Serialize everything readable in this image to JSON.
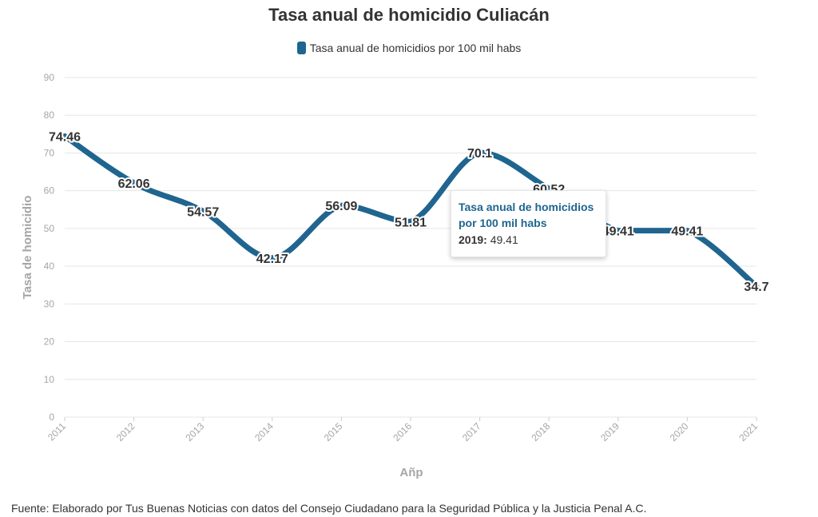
{
  "chart_data": {
    "type": "line",
    "title": "Tasa anual de homicidio Culiacán",
    "xlabel": "Añp",
    "ylabel": "Tasa de homicidio",
    "x": [
      "2011",
      "2012",
      "2013",
      "2014",
      "2015",
      "2016",
      "2017",
      "2018",
      "2019",
      "2020",
      "2021"
    ],
    "series": [
      {
        "name": "Tasa anual de homicidios por 100 mil habs",
        "values": [
          74.46,
          62.06,
          54.57,
          42.17,
          56.09,
          51.81,
          70.1,
          60.52,
          49.41,
          49.41,
          34.7
        ],
        "labels": [
          "74.46",
          "62.06",
          "54.57",
          "42.17",
          "56.09",
          "51.81",
          "70.1",
          "60.52",
          "49.41",
          "49.41",
          "34.7"
        ],
        "color": "#1f6590"
      }
    ],
    "ylim": [
      0,
      90
    ],
    "yticks": [
      0,
      10,
      20,
      30,
      40,
      50,
      60,
      70,
      80,
      90
    ],
    "grid": true,
    "legend": "top-center"
  },
  "tooltip": {
    "title": "Tasa anual de homicidios por 100 mil habs",
    "year": "2019:",
    "value": "49.41"
  },
  "source": "Fuente: Elaborado por Tus Buenas Noticias con datos del Consejo Ciudadano para la Seguridad Pública y la Justicia Penal A.C."
}
